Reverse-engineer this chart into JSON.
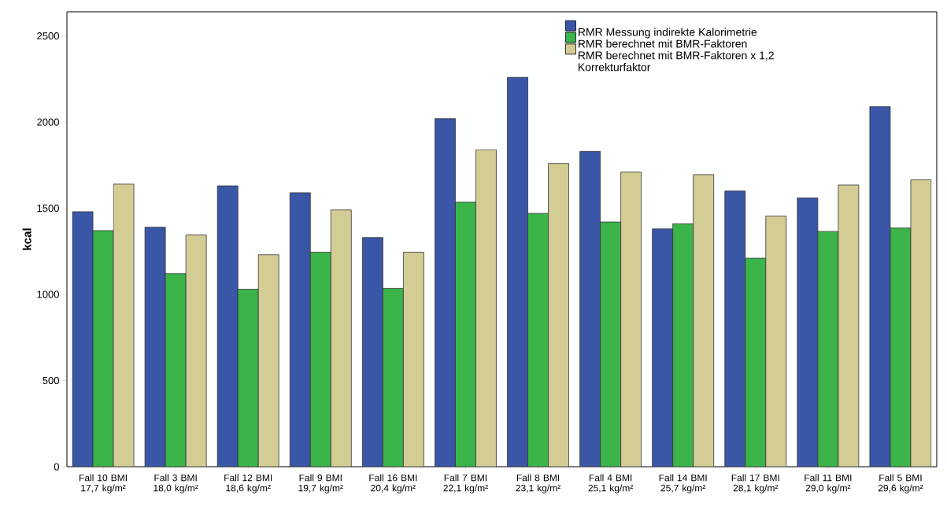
{
  "chart_data": {
    "type": "bar",
    "ylabel": "kcal",
    "categories": [
      "Fall 10 BMI 17,7 kg/m²",
      "Fall 3 BMI 18,0 kg/m²",
      "Fall 12 BMI 18,6 kg/m²",
      "Fall 9 BMI 19,7 kg/m²",
      "Fall 16 BMI 20,4 kg/m²",
      "Fall 7 BMI 22,1 kg/m²",
      "Fall 8 BMI 23,1 kg/m²",
      "Fall 4 BMI 25,1 kg/m²",
      "Fall 14 BMI 25,7 kg/m²",
      "Fall 17 BMI 28,1 kg/m²",
      "Fall 11 BMI 29,0 kg/m²",
      "Fall 5 BMI 29,6 kg/m²"
    ],
    "series": [
      {
        "name": "RMR Messung indirekte Kalorimetrie",
        "color": "#3a56a6",
        "values": [
          1480,
          1390,
          1630,
          1590,
          1330,
          2020,
          2260,
          1830,
          1380,
          1600,
          1560,
          2090
        ]
      },
      {
        "name": "RMR berechnet mit BMR-Faktoren",
        "color": "#3bb44a",
        "values": [
          1370,
          1120,
          1030,
          1245,
          1035,
          1535,
          1470,
          1420,
          1410,
          1210,
          1365,
          1385
        ]
      },
      {
        "name": "RMR berechnet mit BMR-Faktoren x 1,2 Korrekturfaktor",
        "color": "#d3cd95",
        "values": [
          1640,
          1345,
          1230,
          1490,
          1245,
          1840,
          1760,
          1710,
          1695,
          1455,
          1635,
          1665
        ]
      }
    ],
    "ylim": [
      0,
      2640
    ],
    "yticks": [
      0,
      500,
      1000,
      1500,
      2000,
      2500
    ],
    "grid": false,
    "legend": "top right"
  }
}
